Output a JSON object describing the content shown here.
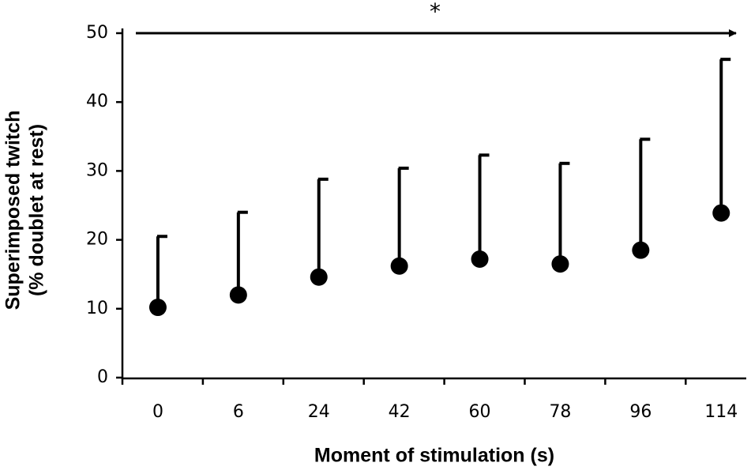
{
  "chart_data": {
    "type": "errorbar",
    "xlabel": "Moment of stimulation (s)",
    "ylabel": [
      "Superimposed twitch",
      "(% doublet at rest)"
    ],
    "annotation": "*",
    "categories": [
      "0",
      "6",
      "24",
      "42",
      "60",
      "78",
      "96",
      "114"
    ],
    "values": [
      10.2,
      12.0,
      14.6,
      16.2,
      17.2,
      16.5,
      18.5,
      23.9
    ],
    "errors": [
      10.3,
      12.0,
      14.2,
      14.2,
      15.1,
      14.6,
      16.1,
      22.3
    ],
    "color": "#000000",
    "ylim": [
      0,
      50
    ],
    "yticks": [
      0,
      10,
      20,
      30,
      40,
      50
    ]
  }
}
